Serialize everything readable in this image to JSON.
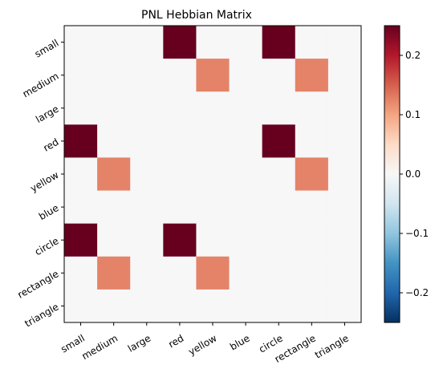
{
  "chart_data": {
    "type": "heatmap",
    "title": "PNL Hebbian Matrix",
    "xlabel": "",
    "ylabel": "",
    "rows": [
      "small",
      "medium",
      "large",
      "red",
      "yellow",
      "blue",
      "circle",
      "rectangle",
      "triangle"
    ],
    "columns": [
      "small",
      "medium",
      "large",
      "red",
      "yellow",
      "blue",
      "circle",
      "rectangle",
      "triangle"
    ],
    "values": [
      [
        0,
        0,
        0,
        0.25,
        0,
        0,
        0.25,
        0,
        0
      ],
      [
        0,
        0,
        0,
        0,
        0.125,
        0,
        0,
        0.125,
        0
      ],
      [
        0,
        0,
        0,
        0,
        0,
        0,
        0,
        0,
        0
      ],
      [
        0.25,
        0,
        0,
        0,
        0,
        0,
        0.25,
        0,
        0
      ],
      [
        0,
        0.125,
        0,
        0,
        0,
        0,
        0,
        0.125,
        0
      ],
      [
        0,
        0,
        0,
        0,
        0,
        0,
        0,
        0,
        0
      ],
      [
        0.25,
        0,
        0,
        0.25,
        0,
        0,
        0,
        0,
        0
      ],
      [
        0,
        0.125,
        0,
        0,
        0.125,
        0,
        0,
        0,
        0
      ],
      [
        0,
        0,
        0,
        0,
        0,
        0,
        0,
        0,
        0
      ]
    ],
    "colorbar": {
      "colormap": "RdBu_r",
      "range": [
        -0.25,
        0.25
      ],
      "ticks": [
        -0.2,
        -0.1,
        0.0,
        0.1,
        0.2
      ],
      "tick_labels": [
        "−0.2",
        "−0.1",
        "0.0",
        "0.1",
        "0.2"
      ]
    },
    "legend": "none",
    "grid": false
  }
}
